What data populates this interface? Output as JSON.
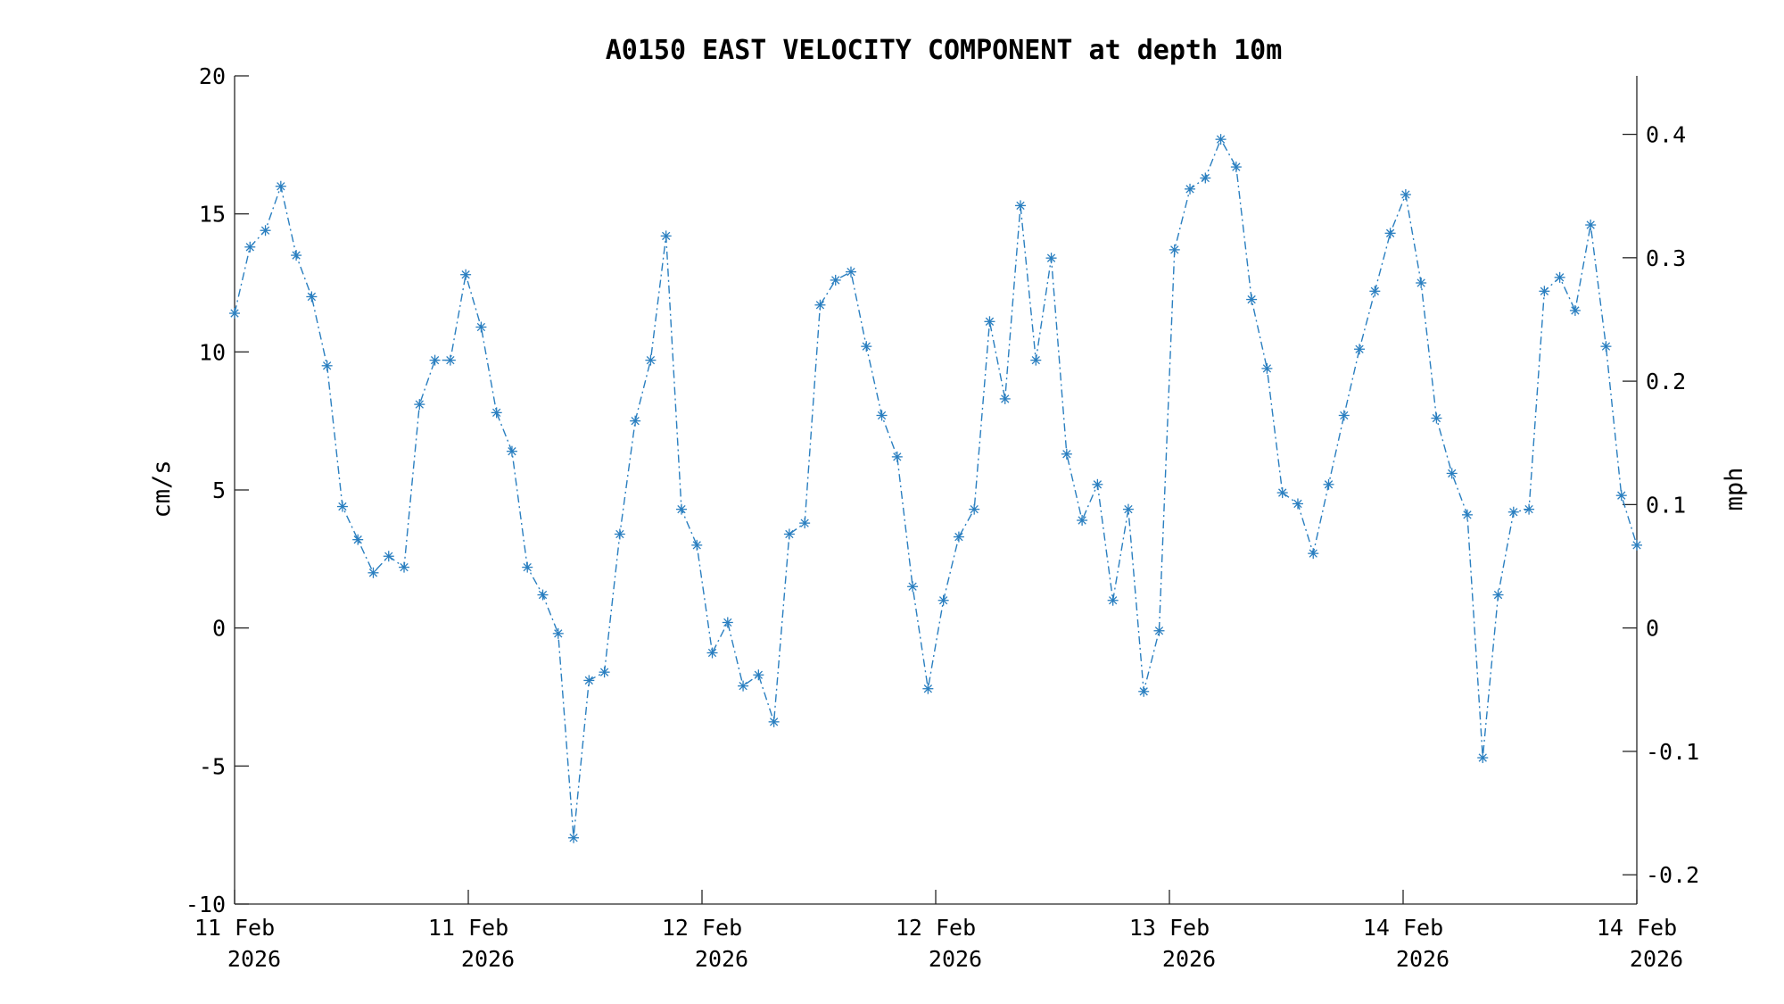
{
  "chart_data": {
    "type": "line",
    "title": "A0150 EAST VELOCITY COMPONENT at depth 10m",
    "ylabel": "cm/s",
    "ylabel_right": "mph",
    "ylim": [
      -10,
      20
    ],
    "yticks": [
      "-10",
      "-5",
      "0",
      "5",
      "10",
      "15",
      "20"
    ],
    "ylim_right_mph": [
      -0.2237,
      0.4474
    ],
    "yticks_right": [
      "-0.2",
      "-0.1",
      "0",
      "0.1",
      "0.2",
      "0.3",
      "0.4"
    ],
    "xlim_hours": [
      0,
      72
    ],
    "xtick_labels": [
      [
        "11 Feb",
        "2026"
      ],
      [
        "11 Feb",
        "2026"
      ],
      [
        "12 Feb",
        "2026"
      ],
      [
        "12 Feb",
        "2026"
      ],
      [
        "13 Feb",
        "2026"
      ],
      [
        "14 Feb",
        "2026"
      ],
      [
        "14 Feb",
        "2026"
      ]
    ],
    "line_style": "dash-dot",
    "marker": "asterisk",
    "color": "#2a7fc0",
    "grid": false,
    "legend": "none",
    "series": [
      {
        "values": [
          11.4,
          13.8,
          14.4,
          16.0,
          13.5,
          12.0,
          9.5,
          4.4,
          3.2,
          2.0,
          2.6,
          2.2,
          8.1,
          9.7,
          9.7,
          12.8,
          10.9,
          7.8,
          6.4,
          2.2,
          1.2,
          -0.2,
          -7.6,
          -1.9,
          -1.6,
          3.4,
          7.5,
          9.7,
          14.2,
          4.3,
          3.0,
          -0.9,
          0.2,
          -2.1,
          -1.7,
          -3.4,
          3.4,
          3.8,
          11.7,
          12.6,
          12.9,
          10.2,
          7.7,
          6.2,
          1.5,
          -2.2,
          1.0,
          3.3,
          4.3,
          11.1,
          8.3,
          15.3,
          9.7,
          13.4,
          6.3,
          3.9,
          5.2,
          1.0,
          4.3,
          -2.3,
          -0.1,
          13.7,
          15.9,
          16.3,
          17.7,
          16.7,
          11.9,
          9.4,
          4.9,
          4.5,
          2.7,
          5.2,
          7.7,
          10.1,
          12.2,
          14.3,
          15.7,
          12.5,
          7.6,
          5.6,
          4.1,
          -4.7,
          1.2,
          4.2,
          4.3,
          12.2,
          12.7,
          11.5,
          14.6,
          10.2,
          4.8,
          3.0
        ]
      }
    ]
  }
}
